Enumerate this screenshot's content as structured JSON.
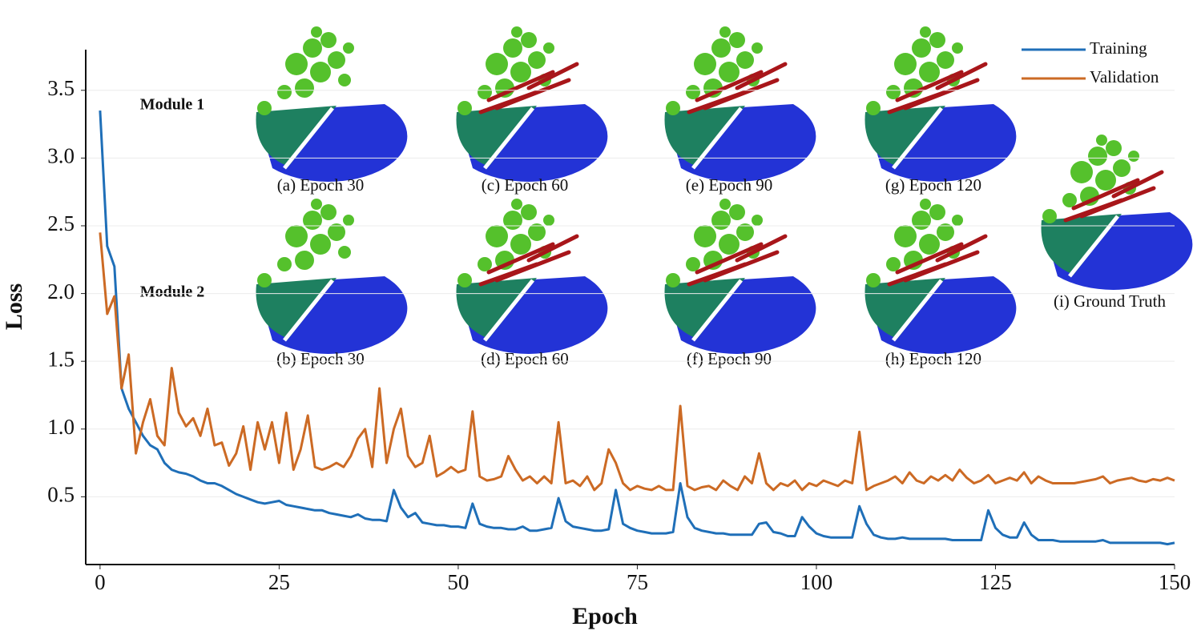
{
  "chart_data": {
    "type": "line",
    "xlabel": "Epoch",
    "ylabel": "Loss",
    "xlim": [
      -2,
      150
    ],
    "ylim": [
      0,
      3.8
    ],
    "xticks": [
      0,
      25,
      50,
      75,
      100,
      125,
      150
    ],
    "yticks": [
      0.5,
      {
        "value": 1,
        "label": "1.0"
      },
      1.5,
      {
        "value": 2,
        "label": "2.0"
      },
      2.5,
      {
        "value": 3,
        "label": "3.0"
      },
      3.5
    ],
    "grid": true,
    "legend": "upper right",
    "x": [
      0,
      1,
      2,
      3,
      4,
      5,
      6,
      7,
      8,
      9,
      10,
      11,
      12,
      13,
      14,
      15,
      16,
      17,
      18,
      19,
      20,
      21,
      22,
      23,
      24,
      25,
      26,
      27,
      28,
      29,
      30,
      31,
      32,
      33,
      34,
      35,
      36,
      37,
      38,
      39,
      40,
      41,
      42,
      43,
      44,
      45,
      46,
      47,
      48,
      49,
      50,
      51,
      52,
      53,
      54,
      55,
      56,
      57,
      58,
      59,
      60,
      61,
      62,
      63,
      64,
      65,
      66,
      67,
      68,
      69,
      70,
      71,
      72,
      73,
      74,
      75,
      76,
      77,
      78,
      79,
      80,
      81,
      82,
      83,
      84,
      85,
      86,
      87,
      88,
      89,
      90,
      91,
      92,
      93,
      94,
      95,
      96,
      97,
      98,
      99,
      100,
      101,
      102,
      103,
      104,
      105,
      106,
      107,
      108,
      109,
      110,
      111,
      112,
      113,
      114,
      115,
      116,
      117,
      118,
      119,
      120,
      121,
      122,
      123,
      124,
      125,
      126,
      127,
      128,
      129,
      130,
      131,
      132,
      133,
      134,
      135,
      136,
      137,
      138,
      139,
      140,
      141,
      142,
      143,
      144,
      145,
      146,
      147,
      148,
      149,
      150
    ],
    "series": [
      {
        "name": "Training",
        "color": "#1f6fb8",
        "values": [
          3.35,
          2.35,
          2.2,
          1.3,
          1.15,
          1.05,
          0.95,
          0.88,
          0.85,
          0.75,
          0.7,
          0.68,
          0.67,
          0.65,
          0.62,
          0.6,
          0.6,
          0.58,
          0.55,
          0.52,
          0.5,
          0.48,
          0.46,
          0.45,
          0.46,
          0.47,
          0.44,
          0.43,
          0.42,
          0.41,
          0.4,
          0.4,
          0.38,
          0.37,
          0.36,
          0.35,
          0.37,
          0.34,
          0.33,
          0.33,
          0.32,
          0.55,
          0.42,
          0.35,
          0.38,
          0.31,
          0.3,
          0.29,
          0.29,
          0.28,
          0.28,
          0.27,
          0.45,
          0.3,
          0.28,
          0.27,
          0.27,
          0.26,
          0.26,
          0.28,
          0.25,
          0.25,
          0.26,
          0.27,
          0.49,
          0.32,
          0.28,
          0.27,
          0.26,
          0.25,
          0.25,
          0.26,
          0.55,
          0.3,
          0.27,
          0.25,
          0.24,
          0.23,
          0.23,
          0.23,
          0.24,
          0.6,
          0.35,
          0.27,
          0.25,
          0.24,
          0.23,
          0.23,
          0.22,
          0.22,
          0.22,
          0.22,
          0.3,
          0.31,
          0.24,
          0.23,
          0.21,
          0.21,
          0.35,
          0.28,
          0.23,
          0.21,
          0.2,
          0.2,
          0.2,
          0.2,
          0.43,
          0.3,
          0.22,
          0.2,
          0.19,
          0.19,
          0.2,
          0.19,
          0.19,
          0.19,
          0.19,
          0.19,
          0.19,
          0.18,
          0.18,
          0.18,
          0.18,
          0.18,
          0.4,
          0.27,
          0.22,
          0.2,
          0.2,
          0.31,
          0.22,
          0.18,
          0.18,
          0.18,
          0.17,
          0.17,
          0.17,
          0.17,
          0.17,
          0.17,
          0.18,
          0.16,
          0.16,
          0.16,
          0.16,
          0.16,
          0.16,
          0.16,
          0.16,
          0.15,
          0.16
        ]
      },
      {
        "name": "Validation",
        "color": "#cc6a24",
        "values": [
          2.45,
          1.85,
          1.98,
          1.3,
          1.55,
          0.82,
          1.05,
          1.22,
          0.95,
          0.88,
          1.45,
          1.12,
          1.02,
          1.08,
          0.95,
          1.15,
          0.88,
          0.9,
          0.73,
          0.82,
          1.02,
          0.7,
          1.05,
          0.85,
          1.05,
          0.75,
          1.12,
          0.7,
          0.85,
          1.1,
          0.72,
          0.7,
          0.72,
          0.75,
          0.72,
          0.8,
          0.93,
          1.0,
          0.72,
          1.3,
          0.75,
          1.0,
          1.15,
          0.8,
          0.72,
          0.75,
          0.95,
          0.65,
          0.68,
          0.72,
          0.68,
          0.7,
          1.13,
          0.65,
          0.62,
          0.63,
          0.65,
          0.8,
          0.7,
          0.62,
          0.65,
          0.6,
          0.65,
          0.6,
          1.05,
          0.6,
          0.62,
          0.58,
          0.65,
          0.55,
          0.6,
          0.85,
          0.75,
          0.6,
          0.55,
          0.58,
          0.56,
          0.55,
          0.58,
          0.55,
          0.55,
          1.17,
          0.58,
          0.55,
          0.57,
          0.58,
          0.55,
          0.62,
          0.58,
          0.55,
          0.65,
          0.6,
          0.82,
          0.6,
          0.55,
          0.6,
          0.58,
          0.62,
          0.55,
          0.6,
          0.58,
          0.62,
          0.6,
          0.58,
          0.62,
          0.6,
          0.98,
          0.55,
          0.58,
          0.6,
          0.62,
          0.65,
          0.6,
          0.68,
          0.62,
          0.6,
          0.65,
          0.62,
          0.66,
          0.62,
          0.7,
          0.64,
          0.6,
          0.62,
          0.66,
          0.6,
          0.62,
          0.64,
          0.62,
          0.68,
          0.6,
          0.65,
          0.62,
          0.6,
          0.6,
          0.6,
          0.6,
          0.61,
          0.62,
          0.63,
          0.65,
          0.6,
          0.62,
          0.63,
          0.64,
          0.62,
          0.61,
          0.63,
          0.62,
          0.64,
          0.62
        ]
      }
    ],
    "modules": [
      "Module 1",
      "Module 2"
    ],
    "panels": [
      "(a) Epoch 30",
      "(b) Epoch 30",
      "(c) Epoch 60",
      "(d) Epoch 60",
      "(e) Epoch 90",
      "(f) Epoch 90",
      "(g) Epoch 120",
      "(h) Epoch 120",
      "(i) Ground Truth"
    ]
  }
}
